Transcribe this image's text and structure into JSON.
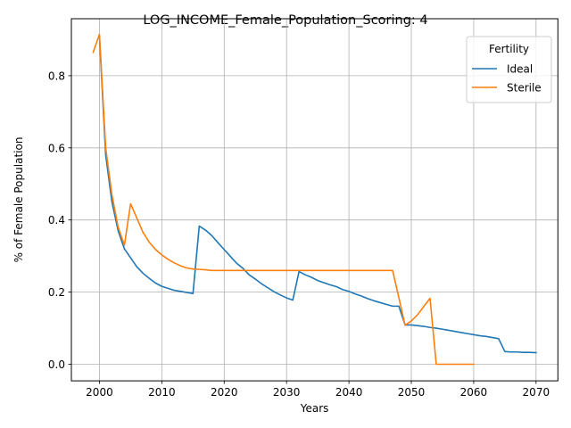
{
  "chart_data": {
    "type": "line",
    "title": "LOG_INCOME_Female_Population_Scoring: 4",
    "xlabel": "Years",
    "ylabel": "% of Female Population",
    "xlim": [
      1995.5,
      2073.5
    ],
    "ylim": [
      -0.046,
      0.958
    ],
    "xticks": [
      2000,
      2010,
      2020,
      2030,
      2040,
      2050,
      2060,
      2070
    ],
    "yticks": [
      0.0,
      0.2,
      0.4,
      0.6,
      0.8
    ],
    "grid": true,
    "legend": {
      "title": "Fertility",
      "placement": "top-right"
    },
    "series": [
      {
        "name": "Ideal",
        "color": "#1f77b4",
        "x": [
          2000,
          2001,
          2002,
          2003,
          2004,
          2005,
          2006,
          2007,
          2008,
          2009,
          2010,
          2012,
          2015,
          2016,
          2017,
          2018,
          2019,
          2020,
          2021,
          2022,
          2023,
          2024,
          2025,
          2026,
          2027,
          2028,
          2029,
          2030,
          2031,
          2032,
          2033,
          2034,
          2035,
          2036,
          2037,
          2038,
          2039,
          2040,
          2041,
          2042,
          2043,
          2044,
          2045,
          2046,
          2047,
          2048,
          2049,
          2050,
          2051,
          2052,
          2053,
          2054,
          2055,
          2056,
          2057,
          2058,
          2059,
          2060,
          2061,
          2062,
          2063,
          2064,
          2065,
          2066,
          2067,
          2068,
          2069,
          2070
        ],
        "y": [
          0.91,
          0.58,
          0.45,
          0.37,
          0.32,
          0.295,
          0.27,
          0.252,
          0.238,
          0.225,
          0.216,
          0.205,
          0.196,
          0.383,
          0.372,
          0.357,
          0.337,
          0.318,
          0.299,
          0.28,
          0.266,
          0.248,
          0.236,
          0.223,
          0.212,
          0.201,
          0.192,
          0.184,
          0.178,
          0.257,
          0.248,
          0.241,
          0.232,
          0.226,
          0.22,
          0.215,
          0.207,
          0.202,
          0.195,
          0.189,
          0.182,
          0.176,
          0.171,
          0.166,
          0.161,
          0.161,
          0.109,
          0.109,
          0.107,
          0.105,
          0.102,
          0.1,
          0.097,
          0.094,
          0.091,
          0.088,
          0.085,
          0.082,
          0.079,
          0.077,
          0.074,
          0.071,
          0.035,
          0.034,
          0.034,
          0.033,
          0.033,
          0.032
        ]
      },
      {
        "name": "Sterile",
        "color": "#ff7f0e",
        "x": [
          1999,
          2000,
          2001,
          2002,
          2003,
          2004,
          2005,
          2006,
          2007,
          2008,
          2009,
          2010,
          2011,
          2012,
          2013,
          2014,
          2015,
          2016,
          2017,
          2018,
          2020,
          2025,
          2030,
          2035,
          2040,
          2045,
          2047,
          2048,
          2049,
          2050,
          2051,
          2052,
          2053,
          2054,
          2055,
          2060
        ],
        "y": [
          0.865,
          0.915,
          0.6,
          0.47,
          0.38,
          0.33,
          0.445,
          0.405,
          0.365,
          0.338,
          0.318,
          0.303,
          0.291,
          0.281,
          0.273,
          0.267,
          0.264,
          0.263,
          0.262,
          0.26,
          0.26,
          0.26,
          0.26,
          0.26,
          0.26,
          0.26,
          0.26,
          0.185,
          0.108,
          0.12,
          0.137,
          0.16,
          0.183,
          0.0,
          0.0,
          0.0
        ]
      }
    ]
  }
}
